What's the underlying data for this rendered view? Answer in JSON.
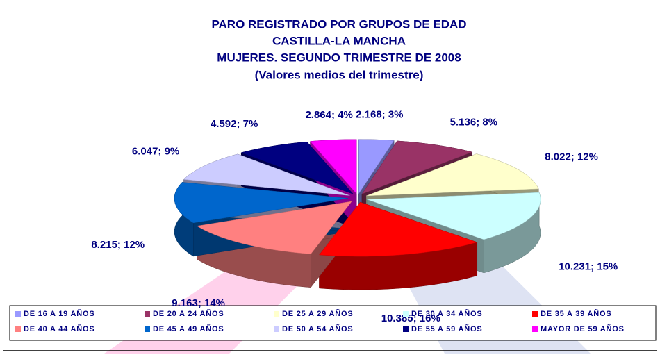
{
  "chart_data": {
    "type": "pie",
    "title": [
      "PARO REGISTRADO POR GRUPOS DE EDAD",
      "CASTILLA-LA MANCHA",
      "MUJERES.  SEGUNDO TRIMESTRE DE 2008"
    ],
    "subtitle": "(Valores medios del trimestre)",
    "categories": [
      "DE 16 A 19 AÑOS",
      "DE 20 A 24 AÑOS",
      "DE 25 A 29 AÑOS",
      "DE 30 A 34 AÑOS",
      "DE 35 A 39 AÑOS",
      "DE 40 A 44 AÑOS",
      "DE 45 A 49 AÑOS",
      "DE 50 A 54 AÑOS",
      "DE 55 A 59 AÑOS",
      "MAYOR DE 59 AÑOS"
    ],
    "values": [
      2168,
      5136,
      8022,
      10231,
      10385,
      9163,
      8215,
      6047,
      4592,
      2864
    ],
    "value_labels": [
      "2.168; 3%",
      "5.136; 8%",
      "8.022; 12%",
      "10.231; 15%",
      "10.385; 16%",
      "9.163; 14%",
      "8.215; 12%",
      "6.047; 9%",
      "4.592; 7%",
      "2.864; 4%"
    ],
    "colors": [
      "#9999ff",
      "#993366",
      "#ffffcc",
      "#ccffff",
      "#ff0000",
      "#ff8080",
      "#0066cc",
      "#ccccff",
      "#000080",
      "#ff00ff"
    ],
    "legend": "bottom"
  }
}
